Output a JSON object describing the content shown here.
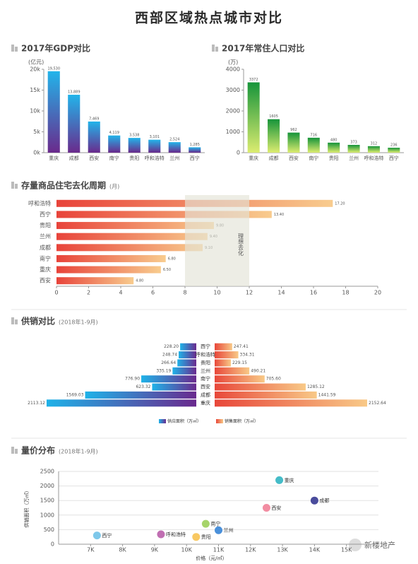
{
  "title": "西部区域热点城市对比",
  "watermark": "新楼地产",
  "chart_data": [
    {
      "type": "bar",
      "title": "2017年GDP对比",
      "unit": "(亿元)",
      "categories": [
        "重庆",
        "成都",
        "西安",
        "南宁",
        "贵阳",
        "呼和浩特",
        "兰州",
        "西宁"
      ],
      "values": [
        19530,
        13889,
        7469,
        4119,
        3538,
        3101,
        2524,
        1285
      ],
      "value_labels": [
        "19,530",
        "13,889",
        "7,469",
        "4,119",
        "3,538",
        "3,101",
        "2,524",
        "1,285"
      ],
      "colors": [
        "#22b4ea",
        "#6a2a8c"
      ],
      "ylim": [
        0,
        20000
      ],
      "yticks": [
        {
          "value": 0,
          "label": "0k"
        },
        {
          "value": 5000,
          "label": "5k"
        },
        {
          "value": 10000,
          "label": "10k"
        },
        {
          "value": 15000,
          "label": "15k"
        },
        {
          "value": 20000,
          "label": "20k"
        }
      ]
    },
    {
      "type": "bar",
      "title": "2017年常住人口对比",
      "unit": "(万)",
      "categories": [
        "重庆",
        "成都",
        "西安",
        "南宁",
        "贵阳",
        "兰州",
        "呼和浩特",
        "西宁"
      ],
      "values": [
        3372,
        1605,
        962,
        716,
        480,
        373,
        312,
        236
      ],
      "colors": [
        "#16943a",
        "#dcec70"
      ],
      "ylim": [
        0,
        4000
      ],
      "yticks": [
        0,
        1000,
        2000,
        3000,
        4000
      ]
    },
    {
      "type": "hbar",
      "title": "存量商品住宅去化周期",
      "subtitle": "(月)",
      "categories": [
        "呼和浩特",
        "西宁",
        "贵阳",
        "兰州",
        "成都",
        "南宁",
        "重庆",
        "西安"
      ],
      "values": [
        17.2,
        13.4,
        9.8,
        9.4,
        9.1,
        6.8,
        6.5,
        4.8
      ],
      "value_labels": [
        "17.20",
        "13.40",
        "9.80",
        "9.40",
        "9.10",
        "6.80",
        "6.50",
        "4.80"
      ],
      "colors": [
        "#e8433a",
        "#f8cc8e"
      ],
      "xlim": [
        0,
        20
      ],
      "xticks": [
        0,
        2,
        4,
        6,
        8,
        10,
        12,
        14,
        16,
        18,
        20
      ],
      "band": [
        8,
        12
      ],
      "band_label": "理想去化"
    },
    {
      "type": "butterfly",
      "title": "供销对比",
      "subtitle": "(2018年1-9月)",
      "categories": [
        "西宁",
        "呼和浩特",
        "贵阳",
        "兰州",
        "南宁",
        "西安",
        "成都",
        "重庆"
      ],
      "series": [
        {
          "name": "供应面积（万㎡）",
          "colors": [
            "#1fb2e8",
            "#6a2a8e"
          ],
          "values": [
            228.2,
            248.74,
            266.64,
            335.19,
            776.9,
            623.32,
            1569.03,
            2113.12
          ],
          "value_labels": [
            "228.20",
            "248.74",
            "266.64",
            "335.19",
            "776.90",
            "623.32",
            "1569.03",
            "2113.12"
          ]
        },
        {
          "name": "销售面积（万㎡）",
          "colors": [
            "#e8473a",
            "#f8c987"
          ],
          "values": [
            247.41,
            334.31,
            229.15,
            490.21,
            705.6,
            1285.12,
            1441.59,
            2152.64
          ],
          "value_labels": [
            "247.41",
            "334.31",
            "229.15",
            "490.21",
            "705.60",
            "1285.12",
            "1441.59",
            "2152.64"
          ]
        }
      ]
    },
    {
      "type": "scatter",
      "title": "量价分布",
      "subtitle": "(2018年1-9月)",
      "xlabel": "价格（元/㎡）",
      "ylabel": "供销面积（万㎡）",
      "points": [
        {
          "label": "重庆",
          "x": 12900,
          "y": 2200,
          "color": "#45bcc8"
        },
        {
          "label": "成都",
          "x": 14000,
          "y": 1500,
          "color": "#4a4c9c"
        },
        {
          "label": "西安",
          "x": 12500,
          "y": 1250,
          "color": "#f28da2"
        },
        {
          "label": "南宁",
          "x": 10600,
          "y": 700,
          "color": "#a6d46a"
        },
        {
          "label": "兰州",
          "x": 11000,
          "y": 480,
          "color": "#4a90da"
        },
        {
          "label": "贵阳",
          "x": 10300,
          "y": 250,
          "color": "#f8c862"
        },
        {
          "label": "呼和浩特",
          "x": 9200,
          "y": 340,
          "color": "#c06eb2"
        },
        {
          "label": "西宁",
          "x": 7200,
          "y": 300,
          "color": "#7ec8ea"
        }
      ],
      "xlim": [
        6000,
        16000
      ],
      "xticks": [
        {
          "value": 7000,
          "label": "7K"
        },
        {
          "value": 8000,
          "label": "8K"
        },
        {
          "value": 9000,
          "label": "9K"
        },
        {
          "value": 10000,
          "label": "10K"
        },
        {
          "value": 11000,
          "label": "11K"
        },
        {
          "value": 12000,
          "label": "12K"
        },
        {
          "value": 13000,
          "label": "13K"
        },
        {
          "value": 14000,
          "label": "14K"
        },
        {
          "value": 15000,
          "label": "15K"
        }
      ],
      "ylim": [
        0,
        2500
      ],
      "yticks": [
        0,
        500,
        1000,
        1500,
        2000,
        2500
      ]
    }
  ]
}
